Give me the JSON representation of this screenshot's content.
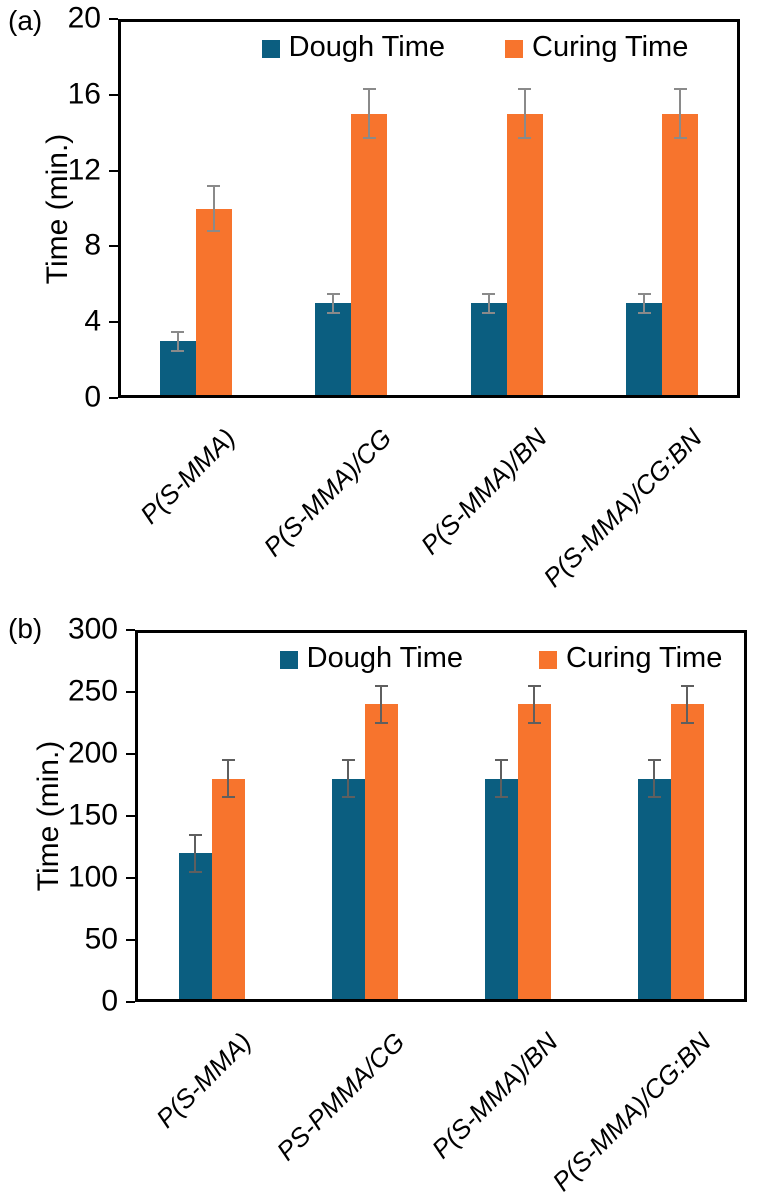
{
  "page": {
    "background": "#ffffff"
  },
  "chart_data": [
    {
      "type": "bar",
      "panel_label": "(a)",
      "title": "",
      "xlabel": "",
      "ylabel": "Time (min.)",
      "ylim": [
        0,
        20
      ],
      "yticks": [
        0,
        4,
        8,
        12,
        16,
        20
      ],
      "grid": false,
      "legend_position": "top-center-inside",
      "categories": [
        "P(S-MMA)",
        "P(S-MMA)/CG",
        "P(S-MMA)/BN",
        "P(S-MMA)/CG:BN"
      ],
      "series": [
        {
          "name": "Dough Time",
          "color": "#0B5E80",
          "values": [
            3,
            5,
            5,
            5
          ],
          "errors": [
            0.5,
            0.5,
            0.5,
            0.5
          ]
        },
        {
          "name": "Curing Time",
          "color": "#F7742D",
          "values": [
            10,
            15,
            15,
            15
          ],
          "errors": [
            1.2,
            1.3,
            1.3,
            1.3
          ]
        }
      ],
      "error_bar_color": "#8a8a8a",
      "axis_color": "#000000"
    },
    {
      "type": "bar",
      "panel_label": "(b)",
      "title": "",
      "xlabel": "",
      "ylabel": "Time (min.)",
      "ylim": [
        0,
        300
      ],
      "yticks": [
        0,
        50,
        100,
        150,
        200,
        250,
        300
      ],
      "grid": false,
      "legend_position": "top-center-inside",
      "categories": [
        "P(S-MMA)",
        "PS-PMMA/CG",
        "P(S-MMA)/BN",
        "P(S-MMA)/CG:BN"
      ],
      "series": [
        {
          "name": "Dough Time",
          "color": "#0B5E80",
          "values": [
            120,
            180,
            180,
            180
          ],
          "errors": [
            15,
            15,
            15,
            15
          ]
        },
        {
          "name": "Curing Time",
          "color": "#F7742D",
          "values": [
            180,
            240,
            240,
            240
          ],
          "errors": [
            15,
            15,
            15,
            15
          ]
        }
      ],
      "error_bar_color": "#5f5f5f",
      "axis_color": "#000000"
    }
  ]
}
